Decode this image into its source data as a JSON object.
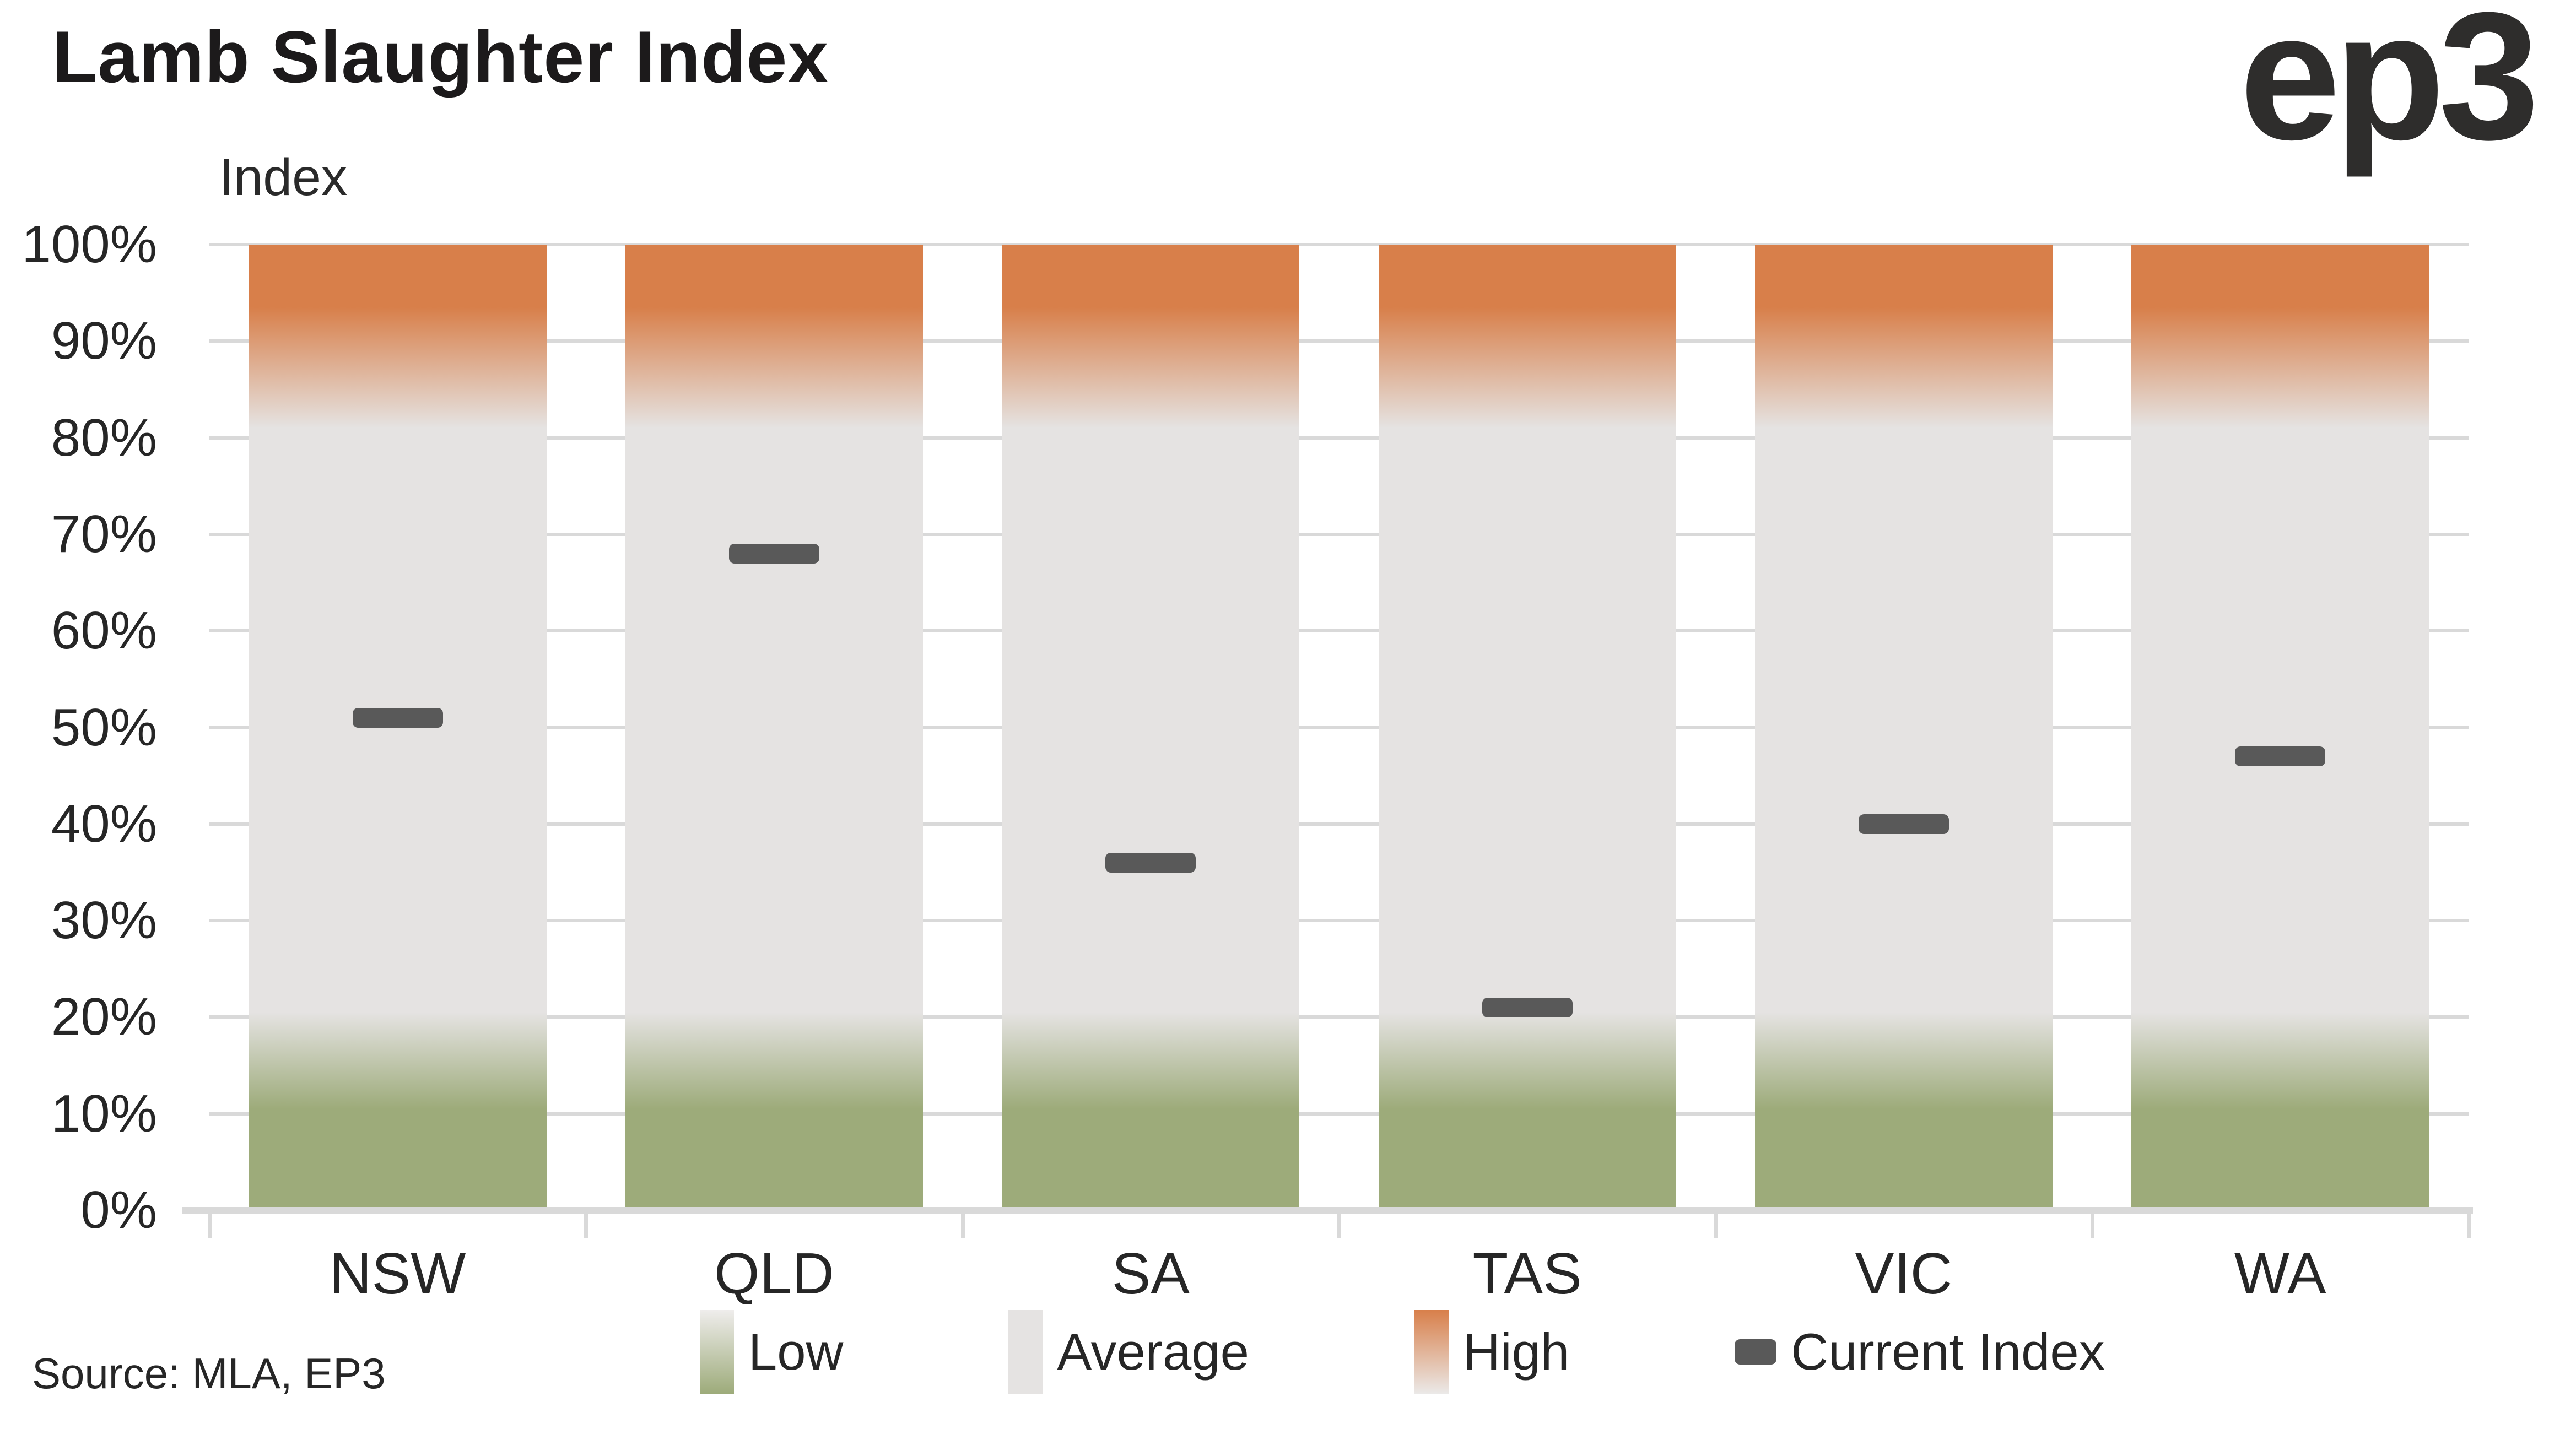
{
  "title": "Lamb Slaughter Index",
  "logo_text": "ep3",
  "source_note": "Source: MLA, EP3",
  "axis": {
    "y_title": "Index",
    "y_ticks": [
      "100%",
      "90%",
      "80%",
      "70%",
      "60%",
      "50%",
      "40%",
      "30%",
      "20%",
      "10%",
      "0%"
    ]
  },
  "legend": [
    {
      "label": "Low",
      "type": "low"
    },
    {
      "label": "Average",
      "type": "average"
    },
    {
      "label": "High",
      "type": "high"
    },
    {
      "label": "Current Index",
      "type": "current"
    }
  ],
  "colors": {
    "low_green": "#9dab7a",
    "average_grey": "#e5e3e2",
    "high_orange": "#d87f4a",
    "current_marker": "#595959",
    "gridline": "#d9d9d9",
    "text": "#262626"
  },
  "chart_data": {
    "type": "bar",
    "title": "Lamb Slaughter Index",
    "ylabel": "Index",
    "ylim": [
      0,
      100
    ],
    "grid": true,
    "legend_position": "bottom",
    "categories": [
      "NSW",
      "QLD",
      "SA",
      "TAS",
      "VIC",
      "WA"
    ],
    "bands_percent_of_scale": [
      {
        "name": "Low",
        "approx_range": [
          0,
          12
        ]
      },
      {
        "name": "Average",
        "approx_range": [
          12,
          88
        ]
      },
      {
        "name": "High",
        "approx_range": [
          88,
          100
        ]
      }
    ],
    "series": [
      {
        "name": "Current Index",
        "values": [
          51,
          68,
          36,
          21,
          40,
          47
        ]
      }
    ]
  }
}
